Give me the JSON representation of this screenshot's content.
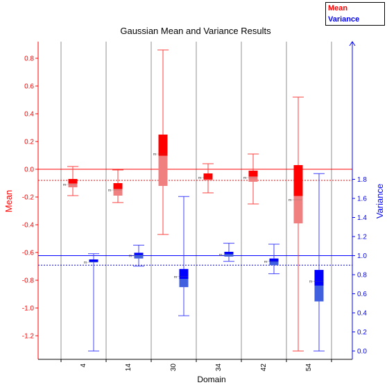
{
  "chart_data": {
    "type": "box",
    "title": "Gaussian Mean and Variance Results",
    "xlabel": "Domain",
    "ylabel_left": "Mean",
    "ylabel_right": "Variance",
    "categories": [
      "4",
      "14",
      "30",
      "34",
      "42",
      "54"
    ],
    "ylim_left": [
      -1.35,
      0.92
    ],
    "ylim_right": [
      -0.04,
      1.91
    ],
    "yticks_left": [
      "0.8",
      "0.6",
      "0.4",
      "0.2",
      "0.0",
      "-0.2",
      "-0.4",
      "-0.6",
      "-0.8",
      "-1.0",
      "-1.2"
    ],
    "yticks_right": [
      "1.8",
      "1.6",
      "1.4",
      "1.2",
      "1.0",
      "0.8",
      "0.6",
      "0.4",
      "0.2",
      "0.0"
    ],
    "mean_color": "#ff0000",
    "variance_color": "#0000ff",
    "reference_lines": {
      "mean_zero": 0.0,
      "mean_dotted": -0.08,
      "variance_one": 1.0,
      "variance_dotted": 0.9
    },
    "series": [
      {
        "name": "Mean",
        "axis": "left",
        "color": "#ff0000",
        "boxes": [
          {
            "category": "4",
            "min": -0.19,
            "q1": -0.13,
            "median": -0.1,
            "q3": -0.07,
            "max": 0.02,
            "mean": -0.11
          },
          {
            "category": "14",
            "min": -0.24,
            "q1": -0.19,
            "median": -0.14,
            "q3": -0.1,
            "max": -0.005,
            "mean": -0.15
          },
          {
            "category": "30",
            "min": -0.47,
            "q1": -0.12,
            "median": 0.1,
            "q3": 0.25,
            "max": 0.86,
            "mean": 0.11
          },
          {
            "category": "34",
            "min": -0.17,
            "q1": -0.08,
            "median": -0.07,
            "q3": -0.03,
            "max": 0.04,
            "mean": -0.06
          },
          {
            "category": "42",
            "min": -0.25,
            "q1": -0.09,
            "median": -0.05,
            "q3": -0.01,
            "max": 0.11,
            "mean": -0.06
          },
          {
            "category": "54",
            "min": -1.31,
            "q1": -0.39,
            "median": -0.19,
            "q3": 0.03,
            "max": 0.52,
            "mean": -0.22
          }
        ]
      },
      {
        "name": "Variance",
        "axis": "right",
        "color": "#0000ff",
        "boxes": [
          {
            "category": "4",
            "min": 0.0,
            "q1": 0.93,
            "median": 0.94,
            "q3": 0.96,
            "max": 1.02,
            "mean": 0.93
          },
          {
            "category": "14",
            "min": 0.89,
            "q1": 0.97,
            "median": 1.01,
            "q3": 1.03,
            "max": 1.11,
            "mean": 1.0
          },
          {
            "category": "30",
            "min": 0.37,
            "q1": 0.67,
            "median": 0.76,
            "q3": 0.86,
            "max": 1.62,
            "mean": 0.78
          },
          {
            "category": "34",
            "min": 0.94,
            "q1": 0.99,
            "median": 1.02,
            "q3": 1.04,
            "max": 1.13,
            "mean": 1.01
          },
          {
            "category": "42",
            "min": 0.81,
            "q1": 0.9,
            "median": 0.94,
            "q3": 0.97,
            "max": 1.12,
            "mean": 0.94
          },
          {
            "category": "54",
            "min": 0.0,
            "q1": 0.52,
            "median": 0.69,
            "q3": 0.85,
            "max": 1.86,
            "mean": 0.73
          }
        ]
      }
    ],
    "median_marker": "m",
    "legend": {
      "placement": "top-right",
      "items": [
        "Mean",
        "Variance"
      ]
    }
  }
}
